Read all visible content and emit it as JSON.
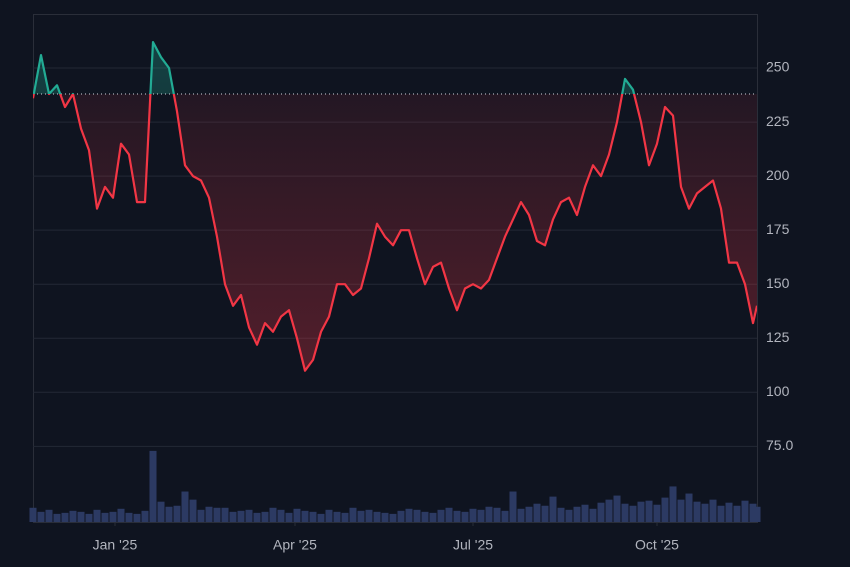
{
  "chart_data": {
    "type": "baseline",
    "x": [
      0,
      4,
      8,
      12,
      16,
      20,
      24,
      28,
      32,
      36,
      40,
      44,
      48,
      52,
      56,
      60,
      64,
      68,
      72,
      76,
      80,
      84,
      88,
      92,
      96,
      100,
      104,
      108,
      112,
      116,
      120,
      124,
      128,
      132,
      136,
      140,
      144,
      148,
      152,
      156,
      160,
      164,
      168,
      172,
      176,
      180,
      184,
      188,
      192,
      196,
      200,
      204,
      208,
      212,
      216,
      220,
      224,
      228,
      232,
      236,
      240,
      244,
      248,
      252,
      256,
      260,
      264,
      268,
      272,
      276,
      280,
      284,
      288,
      292,
      296,
      300,
      304,
      308,
      312,
      316,
      320,
      324,
      328,
      332,
      336,
      340,
      344,
      348,
      352,
      356,
      360,
      362
    ],
    "xlim": [
      0,
      362
    ],
    "xticks": [
      {
        "value": 41,
        "label": "Jan '25"
      },
      {
        "value": 131,
        "label": "Apr '25"
      },
      {
        "value": 220,
        "label": "Jul '25"
      },
      {
        "value": 312,
        "label": "Oct '25"
      }
    ],
    "ylim": [
      40,
      275
    ],
    "yticks": [
      {
        "value": 75,
        "label": "75.0"
      },
      100,
      125,
      150,
      175,
      200,
      225,
      250
    ],
    "y2lim": [
      0,
      500
    ],
    "grid": true,
    "baseline": 238,
    "series": [
      {
        "values": [
          236,
          256,
          238,
          242,
          232,
          238,
          222,
          212,
          185,
          195,
          190,
          215,
          210,
          188,
          188,
          262,
          255,
          250,
          230,
          205,
          200,
          198,
          190,
          172,
          150,
          140,
          145,
          130,
          122,
          132,
          128,
          135,
          138,
          125,
          110,
          115,
          128,
          135,
          150,
          150,
          145,
          148,
          162,
          178,
          172,
          168,
          175,
          175,
          162,
          150,
          158,
          160,
          148,
          138,
          148,
          150,
          148,
          152,
          162,
          172,
          180,
          188,
          182,
          170,
          168,
          180,
          188,
          190,
          182,
          195,
          205,
          200,
          210,
          225,
          245,
          240,
          225,
          205,
          215,
          232,
          228,
          195,
          185,
          192,
          195,
          198,
          185,
          160,
          160,
          150,
          132,
          140
        ],
        "up_color": "#22ab94",
        "down_color": "#f23645"
      },
      {
        "values": [
          14,
          10,
          12,
          8,
          9,
          11,
          10,
          8,
          12,
          9,
          10,
          13,
          9,
          8,
          11,
          70,
          20,
          15,
          16,
          30,
          22,
          12,
          15,
          14,
          14,
          10,
          11,
          12,
          9,
          10,
          14,
          12,
          9,
          13,
          11,
          10,
          8,
          12,
          10,
          9,
          14,
          11,
          12,
          10,
          9,
          8,
          11,
          13,
          12,
          10,
          9,
          12,
          14,
          11,
          10,
          13,
          12,
          15,
          14,
          11,
          30,
          13,
          15,
          18,
          16,
          25,
          14,
          12,
          15,
          17,
          13,
          19,
          22,
          26,
          18,
          16,
          20,
          21,
          17,
          24,
          35,
          22,
          28,
          20,
          18,
          22,
          16,
          19,
          16,
          21,
          18,
          15
        ],
        "color": "#2c3a63",
        "axis": "y2"
      }
    ]
  }
}
